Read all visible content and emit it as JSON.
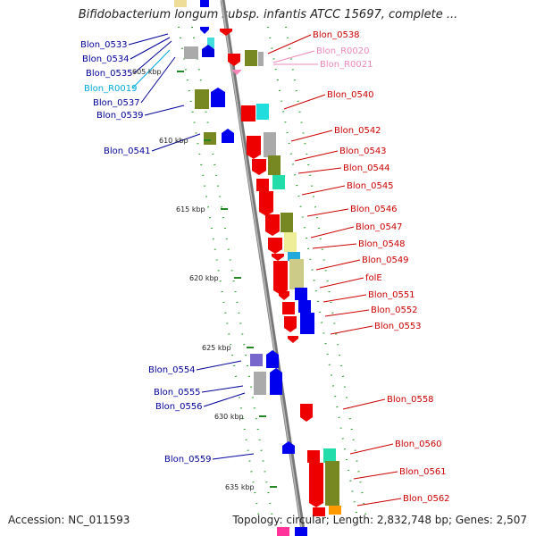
{
  "title": "Bifidobacterium longum subsp. infantis ATCC 15697, complete ...",
  "accession": "Accession: NC_011593",
  "topology": "Topology: circular; Length: 2,832,748 bp; Genes: 2,507",
  "colors": {
    "forward_label": "#cc0000",
    "reverse_label": "#000099",
    "rrna_forward_label": "#ee88bb",
    "rrna_reverse_label": "#00aadd",
    "backbone": "#888888",
    "kbp_tick": "#228822"
  },
  "kbp_marks": [
    "605 kbp",
    "610 kbp",
    "615 kbp",
    "620 kbp",
    "625 kbp",
    "630 kbp",
    "635 kbp"
  ],
  "left_labels": [
    {
      "text": "Blon_0533",
      "type": "gene"
    },
    {
      "text": "Blon_0534",
      "type": "gene"
    },
    {
      "text": "Blon_0535",
      "type": "gene"
    },
    {
      "text": "Blon_R0019",
      "type": "rna"
    },
    {
      "text": "Blon_0537",
      "type": "gene"
    },
    {
      "text": "Blon_0539",
      "type": "gene"
    },
    {
      "text": "Blon_0541",
      "type": "gene"
    },
    {
      "text": "Blon_0554",
      "type": "gene"
    },
    {
      "text": "Blon_0555",
      "type": "gene"
    },
    {
      "text": "Blon_0556",
      "type": "gene"
    },
    {
      "text": "Blon_0559",
      "type": "gene"
    }
  ],
  "right_labels": [
    {
      "text": "Blon_0538",
      "type": "gene"
    },
    {
      "text": "Blon_R0020",
      "type": "rna"
    },
    {
      "text": "Blon_R0021",
      "type": "rna"
    },
    {
      "text": "Blon_0540",
      "type": "gene"
    },
    {
      "text": "Blon_0542",
      "type": "gene"
    },
    {
      "text": "Blon_0543",
      "type": "gene"
    },
    {
      "text": "Blon_0544",
      "type": "gene"
    },
    {
      "text": "Blon_0545",
      "type": "gene"
    },
    {
      "text": "Blon_0546",
      "type": "gene"
    },
    {
      "text": "Blon_0547",
      "type": "gene"
    },
    {
      "text": "Blon_0548",
      "type": "gene"
    },
    {
      "text": "Blon_0549",
      "type": "gene"
    },
    {
      "text": "folE",
      "type": "gene"
    },
    {
      "text": "Blon_0551",
      "type": "gene"
    },
    {
      "text": "Blon_0552",
      "type": "gene"
    },
    {
      "text": "Blon_0553",
      "type": "gene"
    },
    {
      "text": "Blon_0558",
      "type": "gene"
    },
    {
      "text": "Blon_0560",
      "type": "gene"
    },
    {
      "text": "Blon_0561",
      "type": "gene"
    },
    {
      "text": "Blon_0562",
      "type": "gene"
    }
  ]
}
